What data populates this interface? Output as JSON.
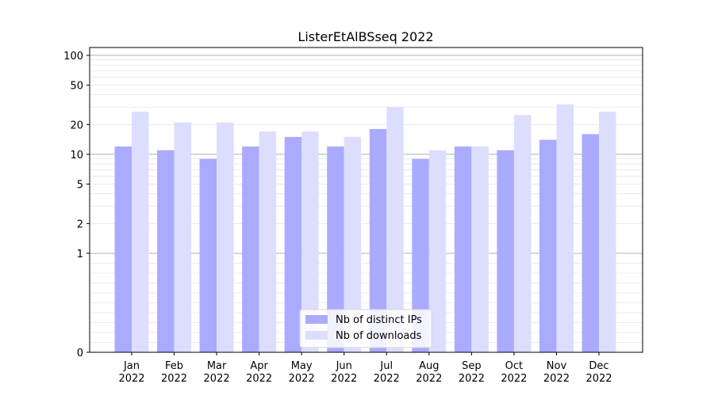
{
  "chart_data": {
    "type": "bar",
    "title": "ListerEtAlBSseq 2022",
    "xlabel": "",
    "ylabel": "",
    "yscale": "symlog",
    "ylim": [
      0,
      120
    ],
    "yticks": [
      0,
      1,
      2,
      5,
      10,
      20,
      50,
      100
    ],
    "categories": [
      "Jan\n2022",
      "Feb\n2022",
      "Mar\n2022",
      "Apr\n2022",
      "May\n2022",
      "Jun\n2022",
      "Jul\n2022",
      "Aug\n2022",
      "Sep\n2022",
      "Oct\n2022",
      "Nov\n2022",
      "Dec\n2022"
    ],
    "series": [
      {
        "name": "Nb of distinct IPs",
        "color": "#aaaaff",
        "values": [
          12,
          11,
          9,
          12,
          15,
          12,
          18,
          9,
          12,
          11,
          14,
          16
        ]
      },
      {
        "name": "Nb of downloads",
        "color": "#ddddff",
        "values": [
          27,
          21,
          21,
          17,
          17,
          15,
          30,
          11,
          12,
          25,
          32,
          27
        ]
      }
    ],
    "grid": true,
    "legend_position": "bottom-center"
  }
}
